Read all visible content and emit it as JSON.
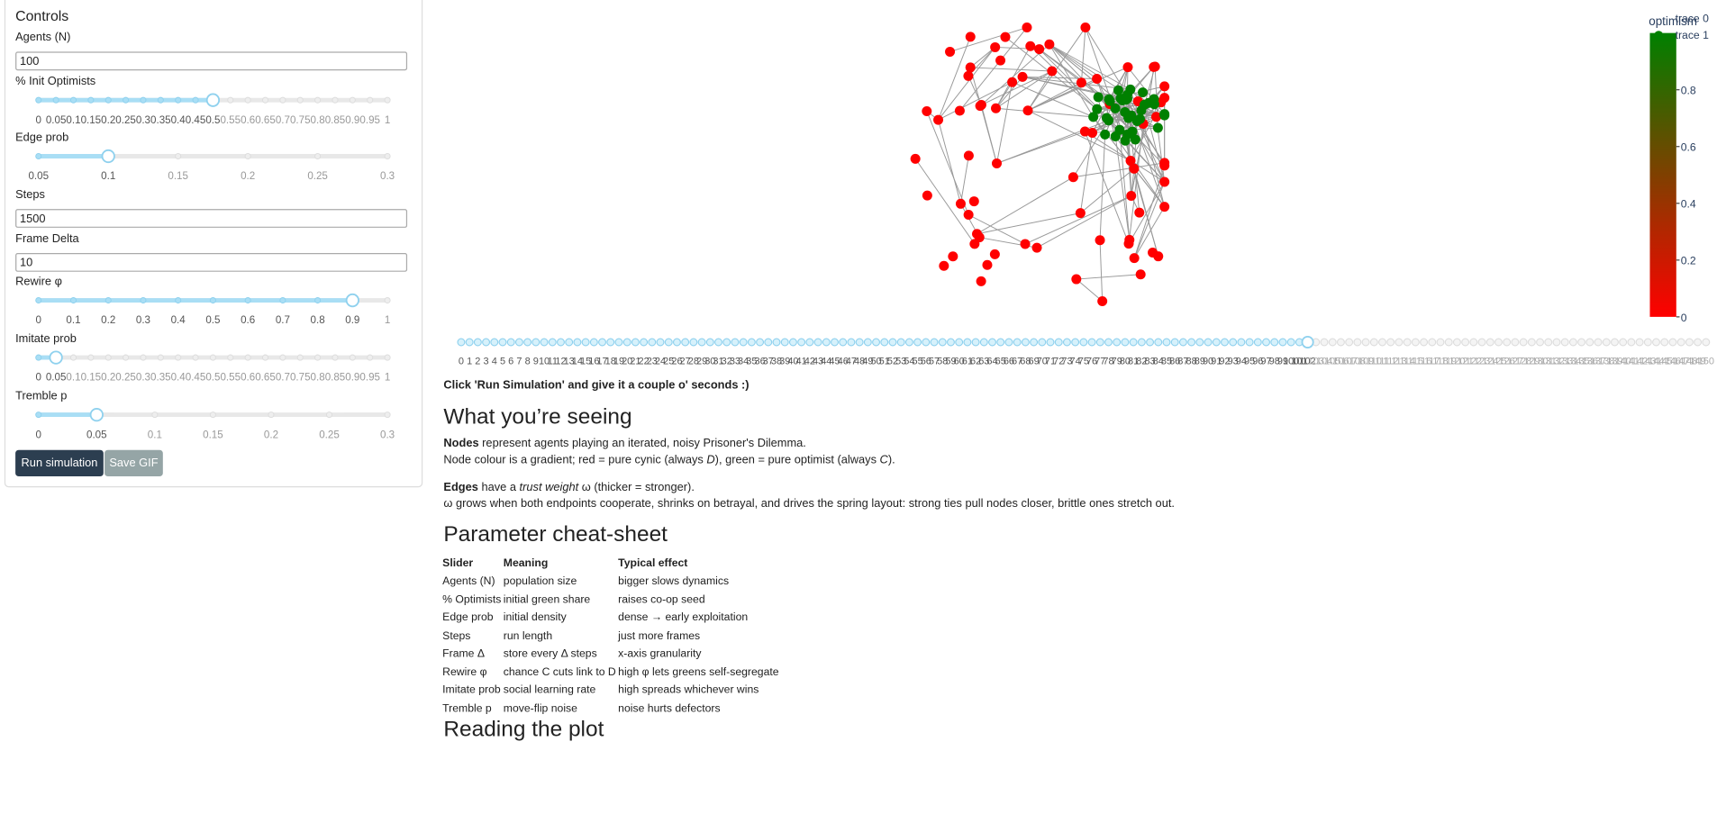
{
  "controls": {
    "title": "Controls",
    "fields": [
      {
        "label": "Agents (N)",
        "value": 100
      },
      {
        "label": "% Init Optimists",
        "ticks": [
          0,
          0.05,
          0.1,
          0.15,
          0.2,
          0.25,
          0.3,
          0.35,
          0.4,
          0.45,
          0.5,
          0.55,
          0.6,
          0.65,
          0.7,
          0.75,
          0.8,
          0.85,
          0.9,
          0.95,
          1
        ],
        "value": 0.5
      },
      {
        "label": "Edge prob",
        "ticks": [
          0.05,
          0.1,
          0.15,
          0.2,
          0.25,
          0.3
        ],
        "value": 0.1
      },
      {
        "label": "Steps",
        "value": 1500
      },
      {
        "label": "Frame Delta",
        "value": 10
      },
      {
        "label": "Rewire φ",
        "ticks": [
          0,
          0.1,
          0.2,
          0.3,
          0.4,
          0.5,
          0.6,
          0.7,
          0.8,
          0.9,
          1
        ],
        "value": 0.9
      },
      {
        "label": "Imitate prob",
        "ticks": [
          0,
          0.05,
          0.1,
          0.15,
          0.2,
          0.25,
          0.3,
          0.35,
          0.4,
          0.45,
          0.5,
          0.55,
          0.6,
          0.65,
          0.7,
          0.75,
          0.8,
          0.85,
          0.9,
          0.95,
          1
        ],
        "value": 0.05
      },
      {
        "label": "Tremble p",
        "ticks": [
          0,
          0.05,
          0.1,
          0.15,
          0.2,
          0.25,
          0.3
        ],
        "value": 0.05
      }
    ],
    "buttons": [
      "Run simulation",
      "Save GIF"
    ]
  },
  "plot": {
    "colorbar": {
      "title": "optimism",
      "ticks": [
        0,
        0.2,
        0.4,
        0.6,
        0.8
      ],
      "colors": [
        "#ff0000",
        "#008000"
      ]
    },
    "legend": [
      "trace 0",
      "trace 1"
    ],
    "frame_slider": {
      "ticks": [
        0,
        1,
        2,
        3,
        4,
        5,
        6,
        7,
        8,
        9,
        10,
        11,
        12,
        13,
        14,
        15,
        16,
        17,
        18,
        19,
        20,
        21,
        22,
        23,
        24,
        25,
        26,
        27,
        28,
        29,
        30,
        31,
        32,
        33,
        34,
        35,
        36,
        37,
        38,
        39,
        40,
        41,
        42,
        43,
        44,
        45,
        46,
        47,
        48,
        49,
        50,
        51,
        52,
        53,
        54,
        55,
        56,
        57,
        58,
        59,
        60,
        61,
        62,
        63,
        64,
        65,
        66,
        67,
        68,
        69,
        70,
        71,
        72,
        73,
        74,
        75,
        76,
        77,
        78,
        79,
        80,
        81,
        82,
        83,
        84,
        85,
        86,
        87,
        88,
        89,
        90,
        91,
        92,
        93,
        94,
        95,
        96,
        97,
        98,
        99,
        100,
        101,
        102,
        103,
        104,
        105,
        106,
        107,
        108,
        109,
        110,
        111,
        112,
        113,
        114,
        115,
        116,
        117,
        118,
        119,
        120,
        121,
        122,
        123,
        124,
        125,
        126,
        127,
        128,
        129,
        130,
        131,
        132,
        133,
        134,
        135,
        136,
        137,
        138,
        139,
        140,
        141,
        142,
        143,
        144,
        145,
        146,
        147,
        148,
        149,
        150
      ],
      "value": 102
    }
  },
  "hint": "Click 'Run Simulation' and give it a couple o' seconds :)",
  "sections": [
    {
      "heading": "What you’re seeing",
      "paragraphs": [
        {
          "parts": [
            "Nodes",
            " represent agents playing an iterated, noisy Prisoner's Dilemma."
          ]
        },
        {
          "parts": [
            "Node colour is a gradient; red = pure cynic (always ",
            "D",
            "), green = pure optimist (always ",
            "C",
            ")."
          ]
        },
        {
          "parts": [
            "Edges",
            " have a ",
            "trust weight",
            " ω (thicker = stronger)."
          ]
        },
        {
          "parts": [
            "ω grows when both endpoints cooperate, shrinks on betrayal, and drives the spring layout: strong ties pull nodes closer, brittle ones stretch out."
          ]
        }
      ]
    },
    {
      "heading": "Parameter cheat-sheet",
      "table": {
        "header": [
          "Slider",
          "Meaning",
          "Typical effect"
        ],
        "rows": [
          [
            "Agents (N)",
            "population size",
            "bigger slows dynamics"
          ],
          [
            "% Optimists",
            "initial green share",
            "raises co-op seed"
          ],
          [
            "Edge prob",
            "initial density",
            "dense → early exploitation"
          ],
          [
            "Steps",
            "run length",
            "just more frames"
          ],
          [
            "Frame Δ",
            "store every Δ steps",
            "x-axis granularity"
          ],
          [
            "Rewire φ",
            "chance C cuts link to D",
            "high φ lets greens self-segregate"
          ],
          [
            "Imitate prob",
            "social learning rate",
            "high spreads whichever wins"
          ],
          [
            "Tremble p",
            "move-flip noise",
            "noise hurts defectors"
          ]
        ]
      }
    },
    {
      "heading": "Reading the plot"
    }
  ]
}
